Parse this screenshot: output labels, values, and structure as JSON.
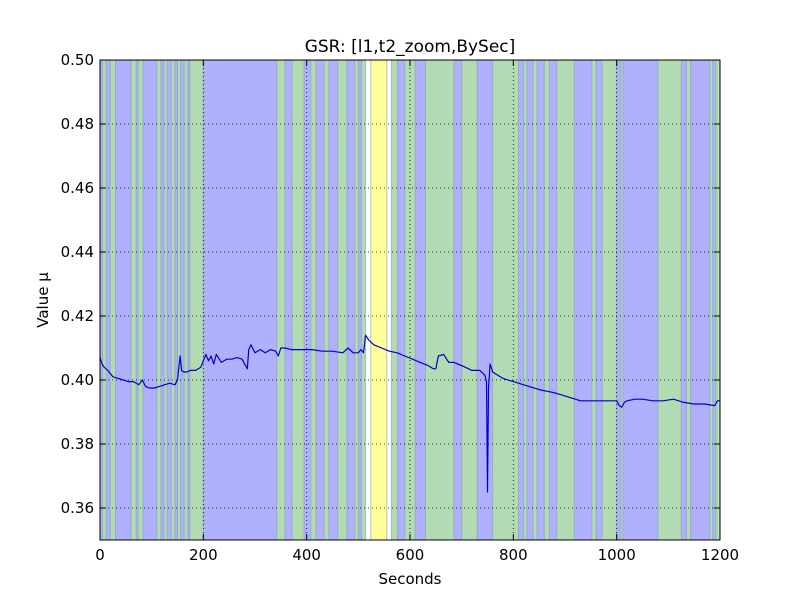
{
  "chart_data": {
    "type": "line",
    "title": "GSR: [l1,t2_zoom,BySec]",
    "xlabel": "Seconds",
    "ylabel": "Value µ",
    "xlim": [
      0,
      1200
    ],
    "ylim": [
      0.35,
      0.5
    ],
    "grid": true,
    "legend": "none",
    "xticks": [
      0,
      200,
      400,
      600,
      800,
      1000,
      1200
    ],
    "xtick_labels": [
      "0",
      "200",
      "400",
      "600",
      "800",
      "1000",
      "1200"
    ],
    "yticks": [
      0.36,
      0.38,
      0.4,
      0.42,
      0.44,
      0.46,
      0.48,
      0.5
    ],
    "ytick_labels": [
      "0.36",
      "0.38",
      "0.40",
      "0.42",
      "0.44",
      "0.46",
      "0.48",
      "0.50"
    ],
    "colors": {
      "line": "#0000cc",
      "band_blue": "#b0b0ff",
      "band_green": "#b3dbb3",
      "band_yellow": "#ffff99",
      "band_white": "#ffffff"
    },
    "bands": [
      {
        "x0": 0,
        "x1": 5,
        "color": "blue"
      },
      {
        "x0": 5,
        "x1": 12,
        "color": "green"
      },
      {
        "x0": 12,
        "x1": 20,
        "color": "blue"
      },
      {
        "x0": 20,
        "x1": 30,
        "color": "green"
      },
      {
        "x0": 30,
        "x1": 60,
        "color": "blue"
      },
      {
        "x0": 60,
        "x1": 70,
        "color": "green"
      },
      {
        "x0": 70,
        "x1": 74,
        "color": "blue"
      },
      {
        "x0": 74,
        "x1": 83,
        "color": "green"
      },
      {
        "x0": 83,
        "x1": 110,
        "color": "blue"
      },
      {
        "x0": 110,
        "x1": 118,
        "color": "green"
      },
      {
        "x0": 118,
        "x1": 124,
        "color": "blue"
      },
      {
        "x0": 124,
        "x1": 130,
        "color": "green"
      },
      {
        "x0": 130,
        "x1": 138,
        "color": "blue"
      },
      {
        "x0": 138,
        "x1": 145,
        "color": "green"
      },
      {
        "x0": 145,
        "x1": 150,
        "color": "blue"
      },
      {
        "x0": 150,
        "x1": 156,
        "color": "green"
      },
      {
        "x0": 156,
        "x1": 163,
        "color": "blue"
      },
      {
        "x0": 163,
        "x1": 170,
        "color": "green"
      },
      {
        "x0": 170,
        "x1": 174,
        "color": "blue"
      },
      {
        "x0": 174,
        "x1": 200,
        "color": "green"
      },
      {
        "x0": 200,
        "x1": 342,
        "color": "blue"
      },
      {
        "x0": 342,
        "x1": 358,
        "color": "green"
      },
      {
        "x0": 358,
        "x1": 372,
        "color": "blue"
      },
      {
        "x0": 372,
        "x1": 395,
        "color": "green"
      },
      {
        "x0": 395,
        "x1": 408,
        "color": "blue"
      },
      {
        "x0": 408,
        "x1": 418,
        "color": "green"
      },
      {
        "x0": 418,
        "x1": 434,
        "color": "blue"
      },
      {
        "x0": 434,
        "x1": 443,
        "color": "green"
      },
      {
        "x0": 443,
        "x1": 460,
        "color": "blue"
      },
      {
        "x0": 460,
        "x1": 478,
        "color": "green"
      },
      {
        "x0": 478,
        "x1": 493,
        "color": "blue"
      },
      {
        "x0": 493,
        "x1": 500,
        "color": "green"
      },
      {
        "x0": 500,
        "x1": 506,
        "color": "blue"
      },
      {
        "x0": 506,
        "x1": 514,
        "color": "green"
      },
      {
        "x0": 514,
        "x1": 524,
        "color": "white"
      },
      {
        "x0": 524,
        "x1": 555,
        "color": "yellow"
      },
      {
        "x0": 555,
        "x1": 564,
        "color": "white"
      },
      {
        "x0": 564,
        "x1": 576,
        "color": "green"
      },
      {
        "x0": 576,
        "x1": 590,
        "color": "blue"
      },
      {
        "x0": 590,
        "x1": 610,
        "color": "green"
      },
      {
        "x0": 610,
        "x1": 630,
        "color": "blue"
      },
      {
        "x0": 630,
        "x1": 685,
        "color": "green"
      },
      {
        "x0": 685,
        "x1": 700,
        "color": "blue"
      },
      {
        "x0": 700,
        "x1": 730,
        "color": "green"
      },
      {
        "x0": 730,
        "x1": 760,
        "color": "blue"
      },
      {
        "x0": 760,
        "x1": 810,
        "color": "green"
      },
      {
        "x0": 810,
        "x1": 820,
        "color": "blue"
      },
      {
        "x0": 820,
        "x1": 826,
        "color": "green"
      },
      {
        "x0": 826,
        "x1": 838,
        "color": "blue"
      },
      {
        "x0": 838,
        "x1": 846,
        "color": "green"
      },
      {
        "x0": 846,
        "x1": 860,
        "color": "blue"
      },
      {
        "x0": 860,
        "x1": 870,
        "color": "green"
      },
      {
        "x0": 870,
        "x1": 884,
        "color": "blue"
      },
      {
        "x0": 884,
        "x1": 918,
        "color": "green"
      },
      {
        "x0": 918,
        "x1": 952,
        "color": "blue"
      },
      {
        "x0": 952,
        "x1": 960,
        "color": "green"
      },
      {
        "x0": 960,
        "x1": 972,
        "color": "blue"
      },
      {
        "x0": 972,
        "x1": 1000,
        "color": "green"
      },
      {
        "x0": 1000,
        "x1": 1008,
        "color": "blue"
      },
      {
        "x0": 1008,
        "x1": 1012,
        "color": "green"
      },
      {
        "x0": 1012,
        "x1": 1080,
        "color": "blue"
      },
      {
        "x0": 1080,
        "x1": 1125,
        "color": "green"
      },
      {
        "x0": 1125,
        "x1": 1135,
        "color": "blue"
      },
      {
        "x0": 1135,
        "x1": 1143,
        "color": "green"
      },
      {
        "x0": 1143,
        "x1": 1180,
        "color": "blue"
      },
      {
        "x0": 1180,
        "x1": 1186,
        "color": "green"
      },
      {
        "x0": 1186,
        "x1": 1192,
        "color": "blue"
      },
      {
        "x0": 1192,
        "x1": 1200,
        "color": "green"
      }
    ],
    "series": [
      {
        "x": [
          0,
          4,
          8,
          15,
          25,
          35,
          45,
          55,
          65,
          75,
          82,
          88,
          95,
          105,
          115,
          125,
          135,
          145,
          150,
          155,
          158,
          162,
          168,
          175,
          185,
          195,
          200,
          205,
          210,
          215,
          220,
          225,
          235,
          245,
          255,
          265,
          275,
          285,
          288,
          292,
          300,
          310,
          320,
          330,
          340,
          345,
          350,
          358,
          370,
          380,
          395,
          410,
          430,
          450,
          470,
          480,
          490,
          500,
          505,
          510,
          514,
          520,
          530,
          545,
          560,
          575,
          590,
          605,
          620,
          635,
          645,
          650,
          655,
          665,
          675,
          685,
          700,
          720,
          735,
          745,
          748,
          750,
          752,
          755,
          760,
          770,
          780,
          800,
          820,
          850,
          880,
          910,
          930,
          950,
          970,
          990,
          1000,
          1005,
          1010,
          1015,
          1020,
          1035,
          1050,
          1070,
          1090,
          1110,
          1130,
          1150,
          1170,
          1190,
          1195,
          1200
        ],
        "y": [
          0.407,
          0.405,
          0.404,
          0.403,
          0.401,
          0.4005,
          0.4,
          0.3995,
          0.3995,
          0.3985,
          0.4,
          0.398,
          0.3975,
          0.3975,
          0.398,
          0.3985,
          0.399,
          0.3985,
          0.4,
          0.4075,
          0.403,
          0.4025,
          0.4025,
          0.403,
          0.403,
          0.404,
          0.406,
          0.408,
          0.406,
          0.4075,
          0.405,
          0.408,
          0.4055,
          0.4065,
          0.4065,
          0.407,
          0.4065,
          0.4035,
          0.4095,
          0.411,
          0.4085,
          0.4095,
          0.4085,
          0.4095,
          0.409,
          0.4075,
          0.41,
          0.41,
          0.4095,
          0.4095,
          0.4095,
          0.4095,
          0.409,
          0.409,
          0.4085,
          0.41,
          0.4085,
          0.4085,
          0.4095,
          0.4085,
          0.414,
          0.4125,
          0.411,
          0.41,
          0.409,
          0.4085,
          0.4075,
          0.4065,
          0.4055,
          0.4045,
          0.4035,
          0.4035,
          0.4075,
          0.408,
          0.4055,
          0.4055,
          0.4045,
          0.403,
          0.403,
          0.4015,
          0.3995,
          0.365,
          0.3975,
          0.405,
          0.4025,
          0.4015,
          0.4005,
          0.3995,
          0.3985,
          0.397,
          0.396,
          0.3945,
          0.3935,
          0.3935,
          0.3935,
          0.3935,
          0.3935,
          0.392,
          0.3915,
          0.393,
          0.3935,
          0.394,
          0.394,
          0.3935,
          0.3935,
          0.394,
          0.393,
          0.3925,
          0.3925,
          0.392,
          0.3935,
          0.3935
        ]
      }
    ]
  }
}
